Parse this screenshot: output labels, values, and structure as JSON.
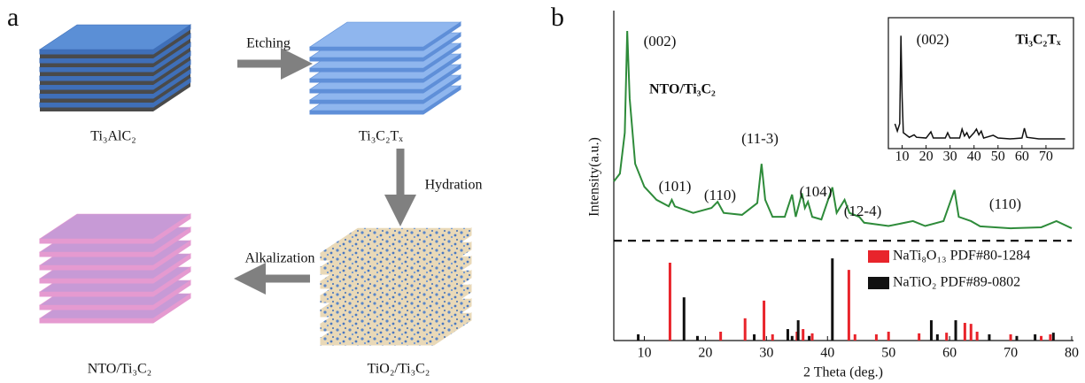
{
  "diagram": {
    "panel_label": "a",
    "materials": [
      "Ti₃AlC₂",
      "Ti₃C₂Tₓ",
      "TiO₂/Ti₃C₂",
      "NTO/Ti₃C₂"
    ],
    "steps": [
      "Etching",
      "Hydration",
      "Alkalization"
    ]
  },
  "chart_data": {
    "type": "line",
    "panel_label": "b",
    "xlabel": "2 Theta (deg.)",
    "ylabel": "Intensity(a.u.)",
    "xlim": [
      5,
      80
    ],
    "ylim": [
      0,
      100
    ],
    "xticks": [
      10,
      20,
      30,
      40,
      50,
      60,
      70,
      80
    ],
    "reference_line": 30.5,
    "series": [
      {
        "name": "NTO/Ti₃C₂",
        "type": "line",
        "color": "#2e8b3a",
        "x": [
          5,
          6,
          6.8,
          7.2,
          7.6,
          8.5,
          10,
          12,
          14,
          14.5,
          15,
          18,
          21,
          22,
          23,
          26,
          28.5,
          29.2,
          29.8,
          31,
          33,
          34.2,
          34.8,
          35.8,
          36.3,
          36.8,
          37.5,
          39,
          40.8,
          41.5,
          42.8,
          43.6,
          45.2,
          46,
          50,
          54,
          56,
          59,
          60.8,
          61.5,
          63.5,
          65,
          70,
          75,
          77.5,
          80
        ],
        "values": [
          48.6,
          51,
          63.5,
          94.6,
          74,
          54,
          47,
          43,
          41,
          43,
          41,
          39,
          40.5,
          42.4,
          39,
          38.4,
          42,
          54,
          43,
          37.8,
          37.8,
          44.6,
          37.8,
          45,
          40.5,
          42.4,
          37.8,
          37,
          46.8,
          39,
          43,
          39,
          37.8,
          36,
          35,
          36.5,
          35,
          36.5,
          46,
          37.8,
          36.5,
          34.9,
          34.3,
          34.6,
          36.5,
          34.3
        ]
      },
      {
        "name": "NaTi₈O₁₃ PDF#80-1284",
        "type": "stem",
        "color": "#e8242b",
        "x": [
          14.2,
          22.5,
          26.5,
          29.6,
          31,
          35,
          36,
          37.5,
          43.5,
          44.5,
          48,
          50,
          55,
          59.5,
          62.5,
          63.5,
          64.5,
          70,
          75,
          76.5
        ],
        "values": [
          23.8,
          2.7,
          6.8,
          12.2,
          1.9,
          2.7,
          3.5,
          2.2,
          21.6,
          1.9,
          1.9,
          2.7,
          2.2,
          2.4,
          5.4,
          5.1,
          2.7,
          1.9,
          1.4,
          1.9
        ]
      },
      {
        "name": "NaTiO₂ PDF#89-0802",
        "type": "stem",
        "color": "#111111",
        "x": [
          9,
          16.5,
          18.7,
          28,
          33.5,
          34.2,
          35.2,
          37,
          40.8,
          57,
          58,
          61,
          66.5,
          71,
          74,
          77
        ],
        "values": [
          1.9,
          13.2,
          1.4,
          1.9,
          3.5,
          1.4,
          6.2,
          1.4,
          25.1,
          6.2,
          1.9,
          6.2,
          1.9,
          1.4,
          1.9,
          2.4
        ]
      }
    ],
    "annotations": [
      {
        "text": "(002)",
        "color": "#2e8b3a"
      },
      {
        "text": "(101)",
        "color": "#e8242b"
      },
      {
        "text": "(110)",
        "color": "#e8242b"
      },
      {
        "text": "(11-3)",
        "color": "#e8242b"
      },
      {
        "text": "(104)",
        "color": "#111111"
      },
      {
        "text": "(12-4)",
        "color": "#e8242b"
      },
      {
        "text": "(110)",
        "color": "#111111"
      }
    ],
    "inset": {
      "type": "line",
      "title": "Ti₃C₂Tₓ",
      "annotation": "(002)",
      "color": "#111111",
      "xlim": [
        5,
        80
      ],
      "ylim": [
        0,
        100
      ],
      "xticks": [
        10,
        20,
        30,
        40,
        50,
        60,
        70
      ],
      "x": [
        7,
        8,
        9,
        9.5,
        10,
        10.5,
        13,
        15,
        16,
        20,
        22,
        23,
        28,
        29,
        30,
        34,
        35,
        36,
        37,
        38,
        40,
        41,
        42,
        43,
        44,
        48,
        50,
        55,
        60,
        61,
        62,
        67,
        78
      ],
      "values": [
        17.9,
        12,
        18,
        89,
        39,
        10.7,
        7,
        9,
        7,
        6.4,
        11.4,
        6.4,
        6.4,
        10.7,
        6.4,
        6.4,
        13.6,
        8,
        10.7,
        6.4,
        10.7,
        13.6,
        9,
        12,
        6.4,
        8.6,
        6.4,
        5.7,
        6.4,
        14.3,
        7,
        5.7,
        5.7
      ]
    }
  }
}
